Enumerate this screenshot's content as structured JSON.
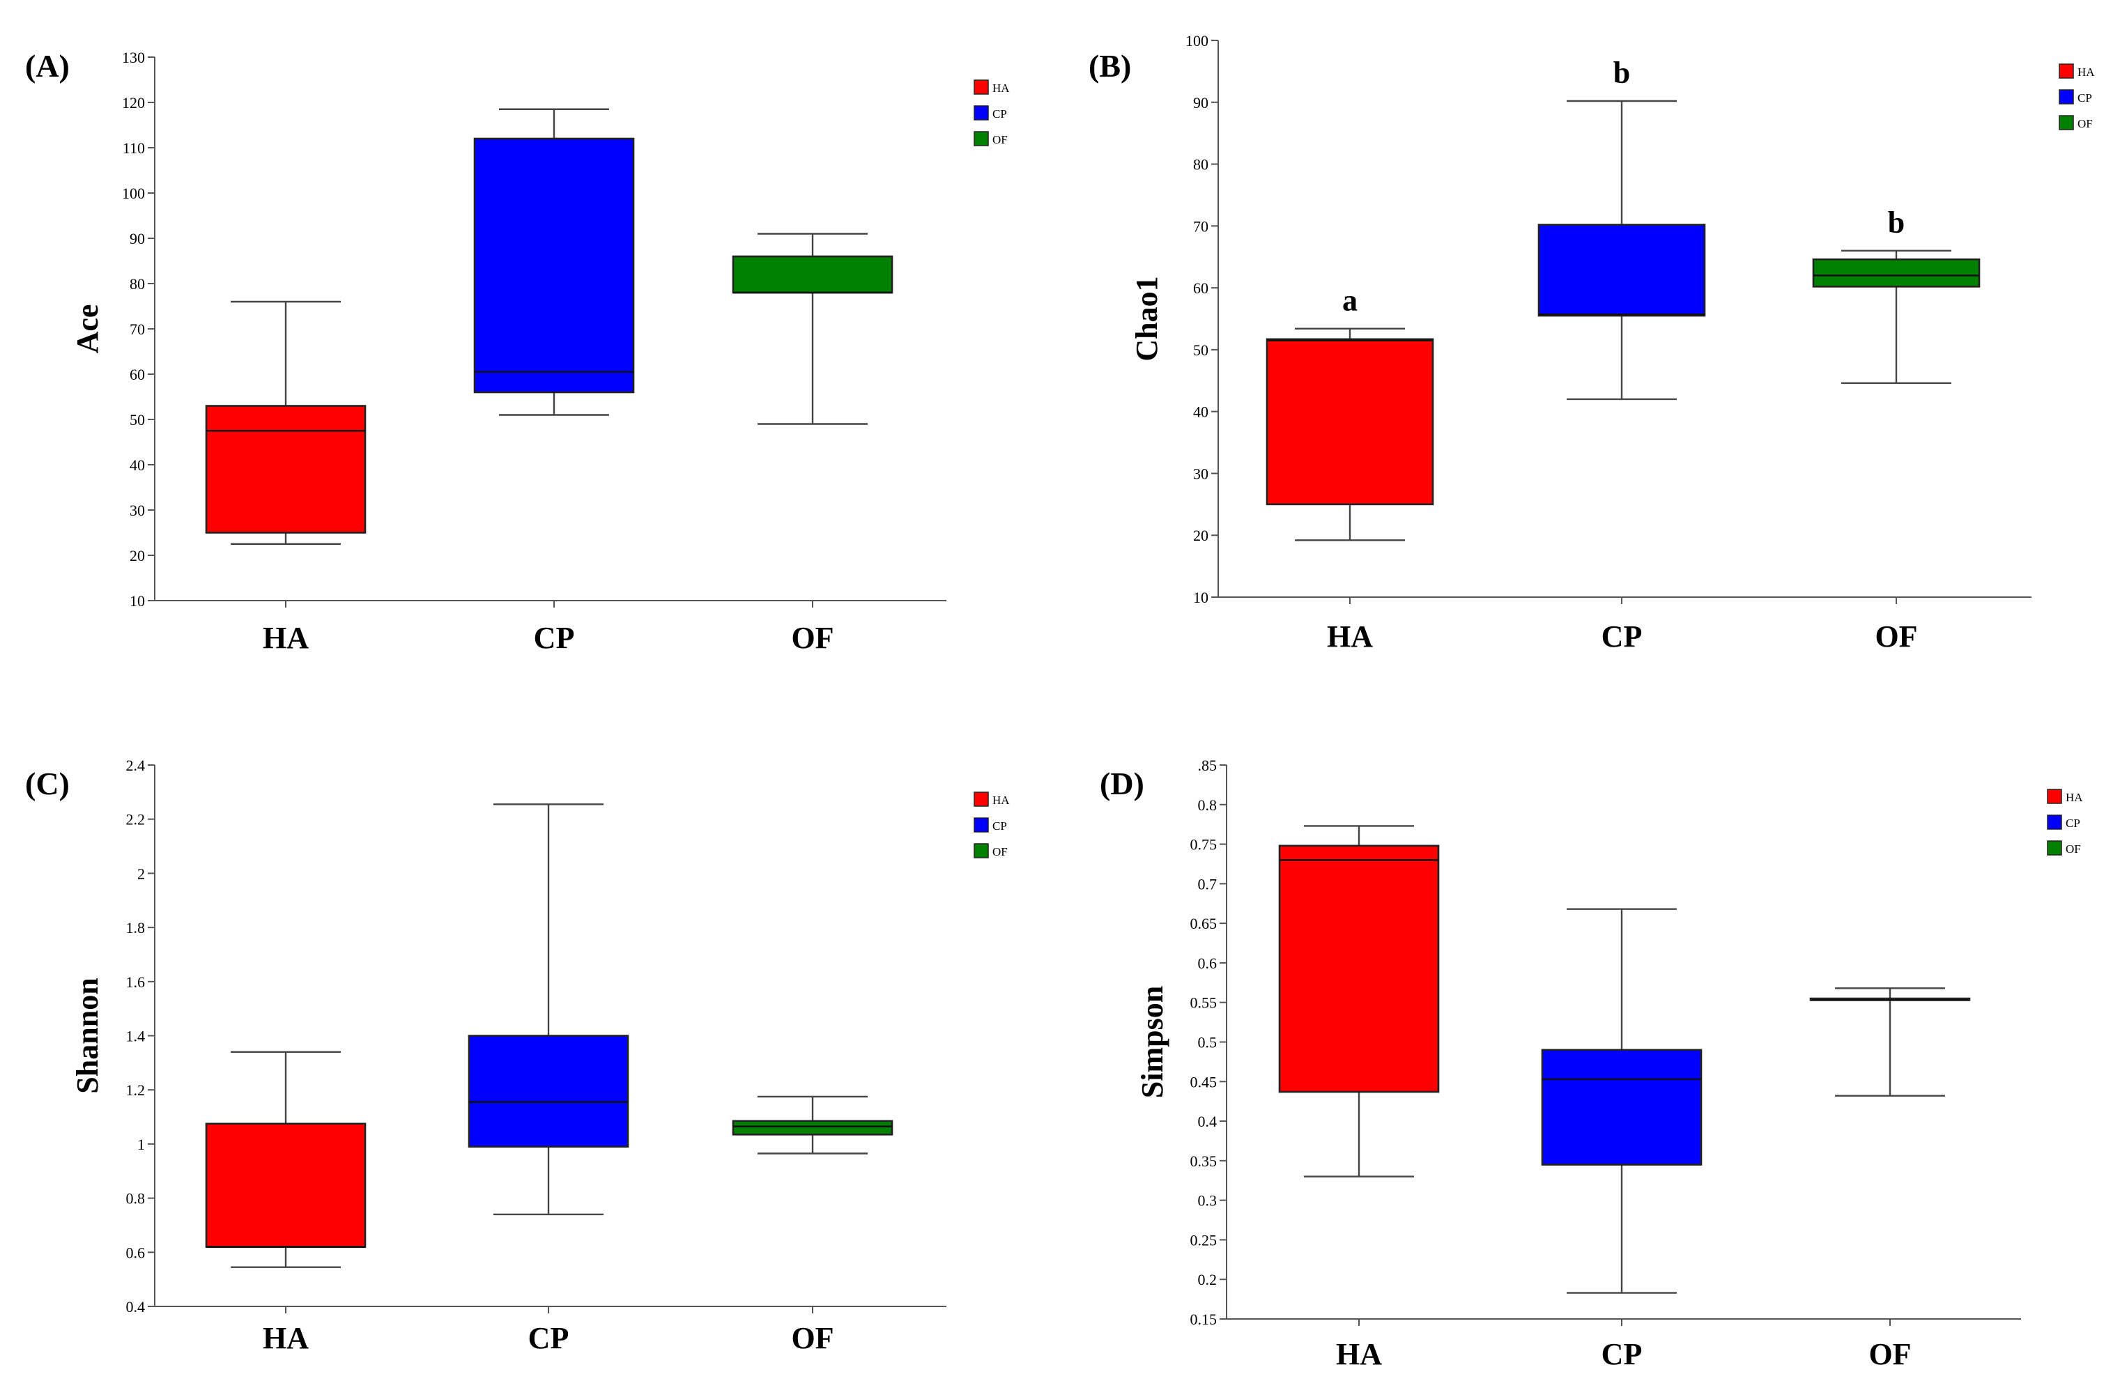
{
  "colors": {
    "HA": "#ff0000",
    "CP": "#0000ff",
    "OF": "#008000"
  },
  "chart_data": [
    {
      "type": "box",
      "panel_label": "(A)",
      "ylabel": "Ace",
      "ylim": [
        10,
        130
      ],
      "yticks": [
        "10",
        "20",
        "30",
        "40",
        "50",
        "60",
        "70",
        "80",
        "90",
        "100",
        "110",
        "120",
        "130"
      ],
      "ytick_values": [
        10,
        20,
        30,
        40,
        50,
        60,
        70,
        80,
        90,
        100,
        110,
        120,
        130
      ],
      "categories": [
        "HA",
        "CP",
        "OF"
      ],
      "legend": [
        "HA",
        "CP",
        "OF"
      ],
      "annotations": [],
      "boxes": [
        {
          "name": "HA",
          "min": 22.5,
          "q1": 25,
          "median": 47.5,
          "q3": 53,
          "max": 76
        },
        {
          "name": "CP",
          "min": 51,
          "q1": 56,
          "median": 60.5,
          "q3": 112,
          "max": 118.5
        },
        {
          "name": "OF",
          "min": 49,
          "q1": 78,
          "median": 78,
          "q3": 86,
          "max": 91
        }
      ]
    },
    {
      "type": "box",
      "panel_label": "(B)",
      "ylabel": "Chao1",
      "ylim": [
        10,
        100
      ],
      "yticks": [
        "10",
        "20",
        "30",
        "40",
        "50",
        "60",
        "70",
        "80",
        "90",
        "100"
      ],
      "ytick_values": [
        10,
        20,
        30,
        40,
        50,
        60,
        70,
        80,
        90,
        100
      ],
      "categories": [
        "HA",
        "CP",
        "OF"
      ],
      "legend": [
        "HA",
        "CP",
        "OF"
      ],
      "annotations": [
        "a",
        "b",
        "b"
      ],
      "boxes": [
        {
          "name": "HA",
          "min": 19.2,
          "q1": 25,
          "median": 51.5,
          "q3": 51.7,
          "max": 53.4
        },
        {
          "name": "CP",
          "min": 42,
          "q1": 55.5,
          "median": 55.7,
          "q3": 70.2,
          "max": 90.2
        },
        {
          "name": "OF",
          "min": 44.6,
          "q1": 60.2,
          "median": 62,
          "q3": 64.6,
          "max": 66
        }
      ]
    },
    {
      "type": "box",
      "panel_label": "(C)",
      "ylabel": "Shannon",
      "ylim": [
        0.4,
        2.4
      ],
      "yticks": [
        "0.4",
        "0.6",
        "0.8",
        "1",
        "1.2",
        "1.4",
        "1.6",
        "1.8",
        "2",
        "2.2",
        "2.4"
      ],
      "ytick_values": [
        0.4,
        0.6,
        0.8,
        1.0,
        1.2,
        1.4,
        1.6,
        1.8,
        2.0,
        2.2,
        2.4
      ],
      "categories": [
        "HA",
        "CP",
        "OF"
      ],
      "legend": [
        "HA",
        "CP",
        "OF"
      ],
      "annotations": [],
      "boxes": [
        {
          "name": "HA",
          "min": 0.545,
          "q1": 0.62,
          "median": 0.62,
          "q3": 1.075,
          "max": 1.34
        },
        {
          "name": "CP",
          "min": 0.74,
          "q1": 0.99,
          "median": 1.155,
          "q3": 1.4,
          "max": 2.255
        },
        {
          "name": "OF",
          "min": 0.965,
          "q1": 1.035,
          "median": 1.065,
          "q3": 1.085,
          "max": 1.175
        }
      ]
    },
    {
      "type": "box",
      "panel_label": "(D)",
      "ylabel": "Simpson",
      "ylim": [
        0.15,
        0.85
      ],
      "yticks": [
        "0.15",
        "0.2",
        "0.25",
        "0.3",
        "0.35",
        "0.4",
        "0.45",
        "0.5",
        "0.55",
        "0.6",
        "0.65",
        "0.7",
        "0.75",
        "0.8",
        ".85"
      ],
      "ytick_values": [
        0.15,
        0.2,
        0.25,
        0.3,
        0.35,
        0.4,
        0.45,
        0.5,
        0.55,
        0.6,
        0.65,
        0.7,
        0.75,
        0.8,
        0.85
      ],
      "categories": [
        "HA",
        "CP",
        "OF"
      ],
      "legend": [
        "HA",
        "CP",
        "OF"
      ],
      "annotations": [],
      "boxes": [
        {
          "name": "HA",
          "min": 0.33,
          "q1": 0.437,
          "median": 0.73,
          "q3": 0.748,
          "max": 0.773
        },
        {
          "name": "CP",
          "min": 0.183,
          "q1": 0.345,
          "median": 0.453,
          "q3": 0.49,
          "max": 0.668
        },
        {
          "name": "OF",
          "min": 0.432,
          "q1": 0.553,
          "median": 0.553,
          "q3": 0.555,
          "max": 0.568
        }
      ]
    }
  ]
}
